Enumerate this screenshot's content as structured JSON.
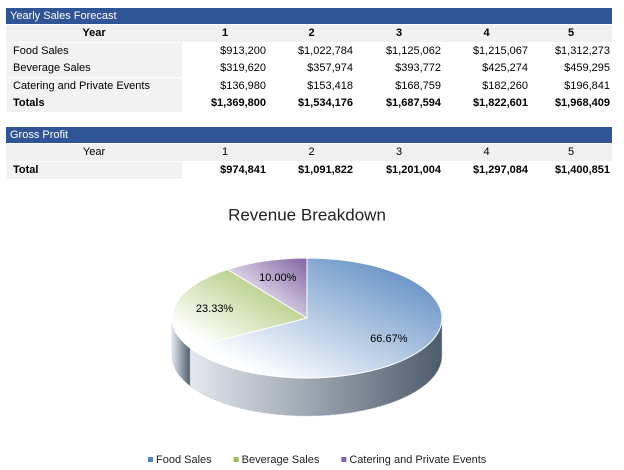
{
  "sales_table": {
    "title": "Yearly Sales Forecast",
    "header": [
      "Year",
      "1",
      "2",
      "3",
      "4",
      "5"
    ],
    "rows": [
      [
        "Food Sales",
        "$913,200",
        "$1,022,784",
        "$1,125,062",
        "$1,215,067",
        "$1,312,273"
      ],
      [
        "Beverage Sales",
        "$319,620",
        "$357,974",
        "$393,772",
        "$425,274",
        "$459,295"
      ],
      [
        "Catering and Private Events",
        "$136,980",
        "$153,418",
        "$168,759",
        "$182,260",
        "$196,841"
      ],
      [
        "Totals",
        "$1,369,800",
        "$1,534,176",
        "$1,687,594",
        "$1,822,601",
        "$1,968,409"
      ]
    ]
  },
  "profit_table": {
    "title": "Gross Profit",
    "header": [
      "Year",
      "1",
      "2",
      "3",
      "4",
      "5"
    ],
    "rows": [
      [
        "Total",
        "$974,841",
        "$1,091,822",
        "$1,201,004",
        "$1,297,084",
        "$1,400,851"
      ]
    ]
  },
  "chart_data": {
    "type": "pie",
    "title": "Revenue Breakdown",
    "categories": [
      "Food Sales",
      "Beverage Sales",
      "Catering and Private Events"
    ],
    "values": [
      66.67,
      23.33,
      10
    ],
    "value_labels": [
      "66.67%",
      "23.33%",
      "10.00%"
    ],
    "colors": [
      "#4f81bd",
      "#9bbb59",
      "#8064a2"
    ],
    "legend": "bottom"
  }
}
